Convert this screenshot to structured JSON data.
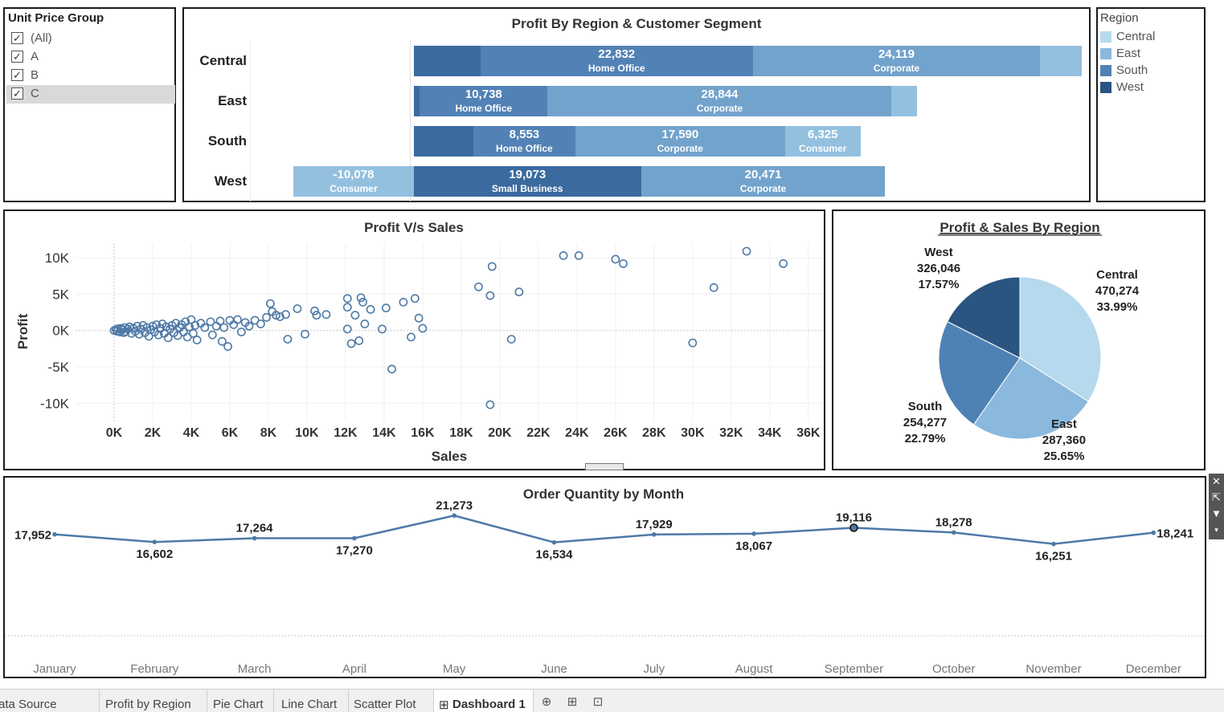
{
  "filter": {
    "title": "Unit Price Group",
    "items": [
      {
        "label": "(All)",
        "checked": true,
        "selected": false
      },
      {
        "label": "A",
        "checked": true,
        "selected": false
      },
      {
        "label": "B",
        "checked": true,
        "selected": false
      },
      {
        "label": "C",
        "checked": true,
        "selected": true
      }
    ]
  },
  "legend": {
    "title": "Region",
    "items": [
      {
        "label": "Central",
        "color": "#b6d9ee"
      },
      {
        "label": "East",
        "color": "#8bb9dd"
      },
      {
        "label": "South",
        "color": "#4f82b4"
      },
      {
        "label": "West",
        "color": "#2a5481"
      }
    ]
  },
  "profit_region": {
    "title": "Profit By Region & Customer Segment",
    "rows": [
      {
        "region": "Central",
        "segments": [
          {
            "value": null,
            "label": "",
            "color": "#3b6a9e"
          },
          {
            "value": "22,832",
            "label": "Home Office",
            "color": "#5282b5"
          },
          {
            "value": "24,119",
            "label": "Corporate",
            "color": "#72a3cc"
          },
          {
            "value": null,
            "label": "",
            "color": "#94c0e0"
          }
        ]
      },
      {
        "region": "East",
        "segments": [
          {
            "value": null,
            "label": "",
            "color": "#3b6a9e"
          },
          {
            "value": "10,738",
            "label": "Home Office",
            "color": "#5282b5"
          },
          {
            "value": "28,844",
            "label": "Corporate",
            "color": "#72a3cc"
          },
          {
            "value": null,
            "label": "",
            "color": "#94c0e0"
          }
        ]
      },
      {
        "region": "South",
        "segments": [
          {
            "value": null,
            "label": "",
            "color": "#3b6a9e"
          },
          {
            "value": "8,553",
            "label": "Home Office",
            "color": "#5282b5"
          },
          {
            "value": "17,590",
            "label": "Corporate",
            "color": "#72a3cc"
          },
          {
            "value": "6,325",
            "label": "Consumer",
            "color": "#94c0e0"
          }
        ]
      },
      {
        "region": "West",
        "segments": [
          {
            "value": "-10,078",
            "label": "Consumer",
            "color": "#94c0e0"
          },
          {
            "value": "19,073",
            "label": "Small Business",
            "color": "#3b6a9e"
          },
          {
            "value": "20,471",
            "label": "Corporate",
            "color": "#72a3cc"
          }
        ]
      }
    ]
  },
  "chart_data": [
    {
      "type": "bar",
      "title": "Profit By Region & Customer Segment",
      "orientation": "horizontal-stacked",
      "categories": [
        "Central",
        "East",
        "South",
        "West"
      ],
      "bars": [
        {
          "region": "Central",
          "segments": [
            {
              "segment": "",
              "start": 0,
              "value": 5600
            },
            {
              "segment": "Home Office",
              "start": 5600,
              "value": 22832
            },
            {
              "segment": "Corporate",
              "start": 28432,
              "value": 24119
            },
            {
              "segment": "",
              "start": 52551,
              "value": 3500
            }
          ]
        },
        {
          "region": "East",
          "segments": [
            {
              "segment": "",
              "start": 0,
              "value": 500
            },
            {
              "segment": "Home Office",
              "start": 500,
              "value": 10738
            },
            {
              "segment": "Corporate",
              "start": 11238,
              "value": 28844
            },
            {
              "segment": "",
              "start": 40082,
              "value": 2100
            }
          ]
        },
        {
          "region": "South",
          "segments": [
            {
              "segment": "",
              "start": 0,
              "value": 5000
            },
            {
              "segment": "Home Office",
              "start": 5000,
              "value": 8553
            },
            {
              "segment": "Corporate",
              "start": 13553,
              "value": 17590
            },
            {
              "segment": "Consumer",
              "start": 31143,
              "value": 6325
            }
          ]
        },
        {
          "region": "West",
          "segments": [
            {
              "segment": "Consumer",
              "start": -10078,
              "value": 10078
            },
            {
              "segment": "Small Business",
              "start": 0,
              "value": 19073
            },
            {
              "segment": "Corporate",
              "start": 19073,
              "value": 20471
            }
          ]
        }
      ],
      "xlim": [
        -10700,
        56700
      ]
    },
    {
      "type": "scatter",
      "title": "Profit V/s Sales",
      "xlabel": "Sales",
      "ylabel": "Profit",
      "xlim": [
        -2000,
        36800
      ],
      "ylim": [
        -12500,
        12000
      ],
      "xticks": [
        0,
        2000,
        4000,
        6000,
        8000,
        10000,
        12000,
        14000,
        16000,
        18000,
        20000,
        22000,
        24000,
        26000,
        28000,
        30000,
        32000,
        34000,
        36000
      ],
      "xtick_labels": [
        "0K",
        "2K",
        "4K",
        "6K",
        "8K",
        "10K",
        "12K",
        "14K",
        "16K",
        "18K",
        "20K",
        "22K",
        "24K",
        "26K",
        "28K",
        "30K",
        "32K",
        "34K",
        "36K"
      ],
      "yticks": [
        10000,
        5000,
        0,
        -5000,
        -10000
      ],
      "ytick_labels": [
        "10K",
        "5K",
        "0K",
        "-5K",
        "-10K"
      ],
      "points": [
        [
          0,
          0
        ],
        [
          100,
          150
        ],
        [
          150,
          -100
        ],
        [
          200,
          250
        ],
        [
          300,
          -200
        ],
        [
          350,
          300
        ],
        [
          400,
          100
        ],
        [
          500,
          -300
        ],
        [
          550,
          400
        ],
        [
          600,
          -150
        ],
        [
          700,
          200
        ],
        [
          800,
          500
        ],
        [
          900,
          -400
        ],
        [
          1000,
          300
        ],
        [
          1100,
          -100
        ],
        [
          1200,
          600
        ],
        [
          1300,
          -500
        ],
        [
          1400,
          200
        ],
        [
          1500,
          700
        ],
        [
          1600,
          -300
        ],
        [
          1700,
          400
        ],
        [
          1800,
          -800
        ],
        [
          1900,
          100
        ],
        [
          2000,
          600
        ],
        [
          2100,
          -200
        ],
        [
          2200,
          800
        ],
        [
          2300,
          -600
        ],
        [
          2400,
          300
        ],
        [
          2500,
          900
        ],
        [
          2600,
          -400
        ],
        [
          2700,
          500
        ],
        [
          2800,
          -1000
        ],
        [
          2900,
          200
        ],
        [
          3000,
          700
        ],
        [
          3100,
          -300
        ],
        [
          3200,
          1000
        ],
        [
          3300,
          -700
        ],
        [
          3400,
          400
        ],
        [
          3500,
          800
        ],
        [
          3600,
          -200
        ],
        [
          3700,
          1200
        ],
        [
          3800,
          -900
        ],
        [
          3900,
          500
        ],
        [
          4000,
          1500
        ],
        [
          4100,
          -400
        ],
        [
          4200,
          700
        ],
        [
          4300,
          -1300
        ],
        [
          4500,
          1000
        ],
        [
          4700,
          400
        ],
        [
          5000,
          1200
        ],
        [
          5100,
          -600
        ],
        [
          5300,
          600
        ],
        [
          5500,
          1300
        ],
        [
          5600,
          -1500
        ],
        [
          5700,
          400
        ],
        [
          5900,
          -2200
        ],
        [
          6000,
          1400
        ],
        [
          6200,
          800
        ],
        [
          6400,
          1500
        ],
        [
          6600,
          -200
        ],
        [
          6800,
          1100
        ],
        [
          7000,
          600
        ],
        [
          7300,
          1400
        ],
        [
          7600,
          900
        ],
        [
          7900,
          1800
        ],
        [
          8100,
          3700
        ],
        [
          8200,
          2600
        ],
        [
          8400,
          2100
        ],
        [
          8600,
          1900
        ],
        [
          8900,
          2200
        ],
        [
          9000,
          -1200
        ],
        [
          9500,
          3000
        ],
        [
          9900,
          -500
        ],
        [
          10400,
          2700
        ],
        [
          10500,
          2100
        ],
        [
          11000,
          2200
        ],
        [
          12100,
          4400
        ],
        [
          12100,
          3200
        ],
        [
          12100,
          200
        ],
        [
          12300,
          -1800
        ],
        [
          12500,
          2100
        ],
        [
          12700,
          -1400
        ],
        [
          12800,
          4500
        ],
        [
          12900,
          3900
        ],
        [
          13000,
          900
        ],
        [
          13300,
          2900
        ],
        [
          13900,
          200
        ],
        [
          14100,
          3100
        ],
        [
          14400,
          -5300
        ],
        [
          15000,
          3900
        ],
        [
          15400,
          -900
        ],
        [
          15600,
          4400
        ],
        [
          15800,
          1700
        ],
        [
          16000,
          300
        ],
        [
          18900,
          6000
        ],
        [
          19500,
          4800
        ],
        [
          19500,
          -10200
        ],
        [
          19600,
          8800
        ],
        [
          20600,
          -1200
        ],
        [
          21000,
          5300
        ],
        [
          23300,
          10300
        ],
        [
          24100,
          10300
        ],
        [
          26000,
          9800
        ],
        [
          26400,
          9200
        ],
        [
          30000,
          -1700
        ],
        [
          31100,
          5900
        ],
        [
          32800,
          10900
        ],
        [
          34700,
          9200
        ]
      ]
    },
    {
      "type": "pie",
      "title": "Profit & Sales By Region",
      "slices": [
        {
          "label": "Central",
          "value": 470274,
          "percent": "33.99%",
          "value_text": "470,274"
        },
        {
          "label": "East",
          "value": 287360,
          "percent": "25.65%",
          "value_text": "287,360"
        },
        {
          "label": "South",
          "value": 254277,
          "percent": "22.79%",
          "value_text": "254,277"
        },
        {
          "label": "West",
          "value": 326046,
          "percent": "17.57%",
          "value_text": "326,046"
        }
      ],
      "slice_degrees": [
        122.4,
        92.3,
        82.0,
        63.3
      ]
    },
    {
      "type": "line",
      "title": "Order Quantity by Month",
      "x": [
        "January",
        "February",
        "March",
        "April",
        "May",
        "June",
        "July",
        "August",
        "September",
        "October",
        "November",
        "December"
      ],
      "values": [
        17952,
        16602,
        17264,
        17270,
        21273,
        16534,
        17929,
        18067,
        19116,
        18278,
        16251,
        18241
      ],
      "value_labels": [
        "17,952",
        "16,602",
        "17,264",
        "17,270",
        "21,273",
        "16,534",
        "17,929",
        "18,067",
        "19,116",
        "18,278",
        "16,251",
        "18,241"
      ],
      "ylim": [
        0,
        28000
      ],
      "label_positions": [
        "left",
        "below",
        "above",
        "below",
        "above",
        "below",
        "above",
        "below",
        "above",
        "above",
        "below",
        "right"
      ],
      "highlighted_index": 8
    }
  ],
  "tabs": [
    {
      "label": "ata Source",
      "active": false
    },
    {
      "label": "Profit by Region",
      "active": false
    },
    {
      "label": "Pie Chart",
      "active": false
    },
    {
      "label": "Line Chart",
      "active": false
    },
    {
      "label": "Scatter Plot",
      "active": false
    },
    {
      "label": "Dashboard 1",
      "active": true
    }
  ],
  "tab_icons": [
    "new-worksheet-icon",
    "new-dashboard-icon",
    "new-story-icon"
  ],
  "side_tools": [
    "close-icon",
    "popout-icon",
    "filter-icon",
    "more-dropdown-icon"
  ],
  "colors": {
    "accent": "#4e79a7",
    "line": "#4e79a7"
  }
}
